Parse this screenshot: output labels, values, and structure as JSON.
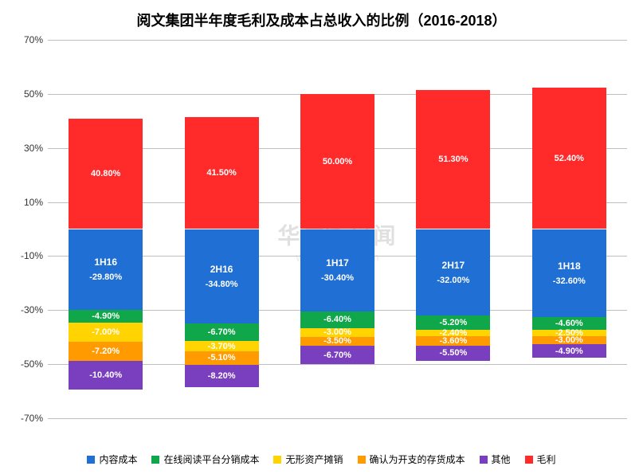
{
  "title": "阅文集团半年度毛利及成本占总收入的比例（2016-2018）",
  "title_fontsize": 18,
  "background_color": "#ffffff",
  "grid_color": "#bfbfbf",
  "y_axis": {
    "min": -70,
    "max": 70,
    "step": 20,
    "format_suffix": "%"
  },
  "label_fontsize": 12,
  "seg_label_fontsize": 11,
  "bar_width_pct": 64,
  "categories": [
    "1H16",
    "2H16",
    "1H17",
    "2H17",
    "1H18"
  ],
  "series": [
    {
      "name": "内容成本",
      "color": "#1f6fd4"
    },
    {
      "name": "在线阅读平台分销成本",
      "color": "#0fa74a"
    },
    {
      "name": "无形资产摊销",
      "color": "#ffd400"
    },
    {
      "name": "确认为开支的存货成本",
      "color": "#ff9a00"
    },
    {
      "name": "其他",
      "color": "#7a3fbf"
    },
    {
      "name": "毛利",
      "color": "#ff2a2a"
    }
  ],
  "stacks": [
    {
      "category": "1H16",
      "negatives": [
        {
          "series": 0,
          "value": -29.8
        },
        {
          "series": 1,
          "value": -4.9
        },
        {
          "series": 2,
          "value": -7.0
        },
        {
          "series": 3,
          "value": -7.2
        },
        {
          "series": 4,
          "value": -10.4
        }
      ],
      "positives": [
        {
          "series": 5,
          "value": 40.8
        }
      ]
    },
    {
      "category": "2H16",
      "negatives": [
        {
          "series": 0,
          "value": -34.8
        },
        {
          "series": 1,
          "value": -6.7
        },
        {
          "series": 2,
          "value": -3.7
        },
        {
          "series": 3,
          "value": -5.1
        },
        {
          "series": 4,
          "value": -8.2
        }
      ],
      "positives": [
        {
          "series": 5,
          "value": 41.5
        }
      ]
    },
    {
      "category": "1H17",
      "negatives": [
        {
          "series": 0,
          "value": -30.4
        },
        {
          "series": 1,
          "value": -6.4
        },
        {
          "series": 2,
          "value": -3.0
        },
        {
          "series": 3,
          "value": -3.5
        },
        {
          "series": 4,
          "value": -6.7
        }
      ],
      "positives": [
        {
          "series": 5,
          "value": 50.0
        }
      ]
    },
    {
      "category": "2H17",
      "negatives": [
        {
          "series": 0,
          "value": -32.0
        },
        {
          "series": 1,
          "value": -5.2
        },
        {
          "series": 2,
          "value": -2.4
        },
        {
          "series": 3,
          "value": -3.6
        },
        {
          "series": 4,
          "value": -5.5
        }
      ],
      "positives": [
        {
          "series": 5,
          "value": 51.3
        }
      ]
    },
    {
      "category": "1H18",
      "negatives": [
        {
          "series": 0,
          "value": -32.6
        },
        {
          "series": 1,
          "value": -4.6
        },
        {
          "series": 2,
          "value": -2.5
        },
        {
          "series": 3,
          "value": -3.0
        },
        {
          "series": 4,
          "value": -4.9
        }
      ],
      "positives": [
        {
          "series": 5,
          "value": 52.4
        }
      ]
    }
  ],
  "watermark": {
    "logo_text": "V",
    "text": "华尔街见闻",
    "subtext": "wallstreetcn.com"
  }
}
